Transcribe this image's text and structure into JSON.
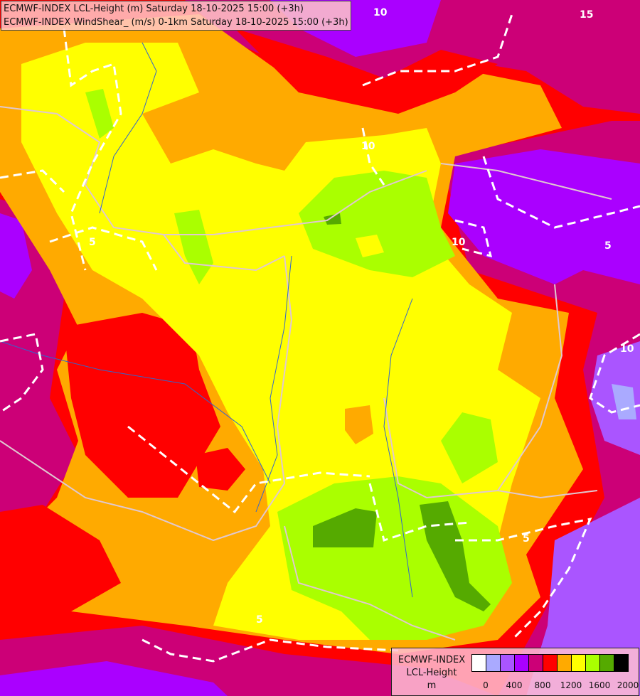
{
  "header": {
    "line1": "ECMWF-INDEX LCL-Height (m) Saturday 18-10-2025 15:00 (+3h)",
    "line2": "ECMWF-INDEX WindShear_ (m/s) 0-1km Saturday 18-10-2025 15:00 (+3h)"
  },
  "legend": {
    "title_line1": "ECMWF-INDEX",
    "title_line2": "LCL-Height",
    "unit": "m",
    "colors": [
      "#ffffff",
      "#aaaaff",
      "#aa55ff",
      "#aa00ff",
      "#cc0077",
      "#ff0000",
      "#ffaa00",
      "#ffff00",
      "#aaff00",
      "#55aa00",
      "#000000"
    ],
    "ticks": [
      "0",
      "400",
      "800",
      "1200",
      "1600",
      "2000"
    ]
  },
  "contour_labels": [
    "10",
    "15",
    "10",
    "10",
    "5",
    "10",
    "5",
    "5",
    "5"
  ]
}
